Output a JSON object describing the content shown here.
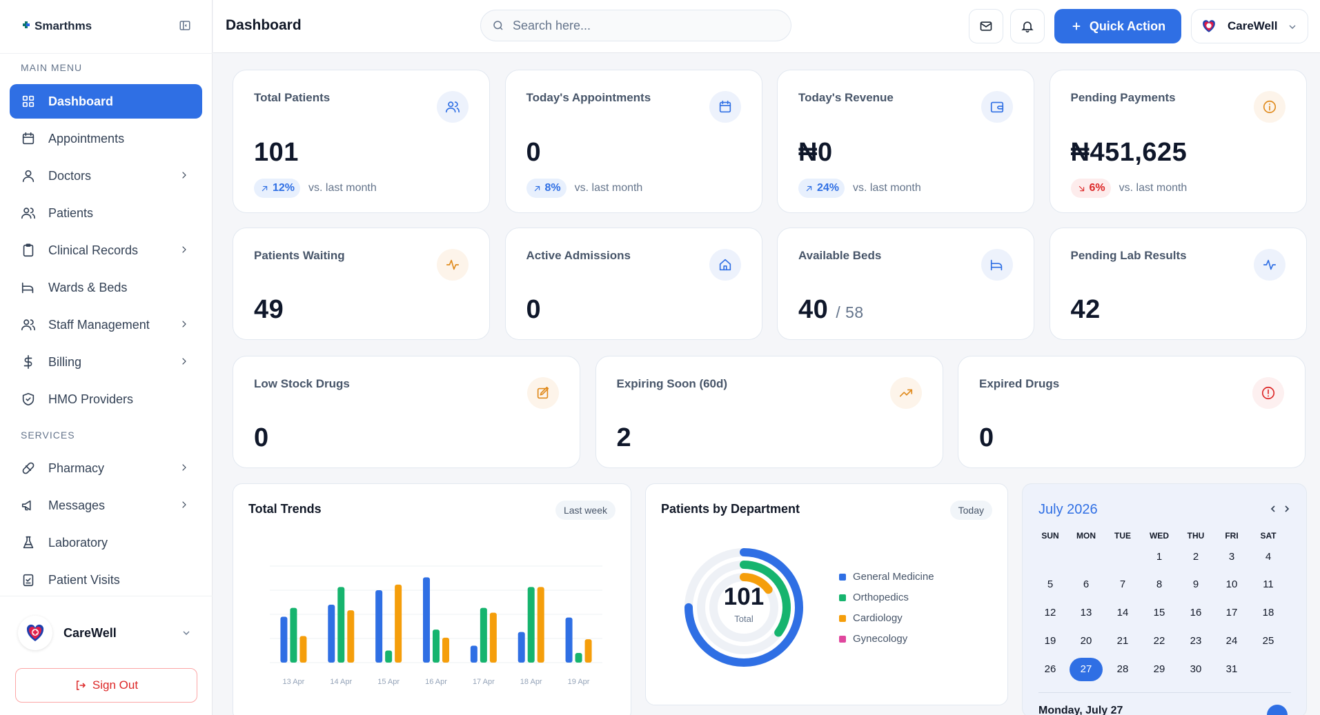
{
  "brand": {
    "name": "Smarthms"
  },
  "sidebar": {
    "main_menu_label": "MAIN MENU",
    "services_label": "SERVICES",
    "items": [
      {
        "label": "Dashboard",
        "icon": "grid-icon",
        "active": true,
        "has_chevron": false
      },
      {
        "label": "Appointments",
        "icon": "calendar-icon",
        "has_chevron": false
      },
      {
        "label": "Doctors",
        "icon": "user-icon",
        "has_chevron": true
      },
      {
        "label": "Patients",
        "icon": "users-icon",
        "has_chevron": false
      },
      {
        "label": "Clinical Records",
        "icon": "clipboard-icon",
        "has_chevron": true
      },
      {
        "label": "Wards & Beds",
        "icon": "bed-icon",
        "has_chevron": false
      },
      {
        "label": "Staff Management",
        "icon": "users-icon",
        "has_chevron": true
      },
      {
        "label": "Billing",
        "icon": "dollar-icon",
        "has_chevron": true
      },
      {
        "label": "HMO Providers",
        "icon": "shield-icon",
        "has_chevron": false
      }
    ],
    "service_items": [
      {
        "label": "Pharmacy",
        "icon": "pill-icon",
        "has_chevron": true
      },
      {
        "label": "Messages",
        "icon": "megaphone-icon",
        "has_chevron": true
      },
      {
        "label": "Laboratory",
        "icon": "flask-icon",
        "has_chevron": false
      },
      {
        "label": "Patient Visits",
        "icon": "clipboard-check-icon",
        "has_chevron": false
      }
    ],
    "user": {
      "name": "CareWell"
    },
    "sign_out": "Sign Out"
  },
  "header": {
    "title": "Dashboard",
    "search_placeholder": "Search here...",
    "quick_action": "Quick Action",
    "org_name": "CareWell"
  },
  "stats_row1": [
    {
      "label": "Total Patients",
      "value": "101",
      "trend": "12%",
      "trend_dir": "up",
      "trend_note": "vs. last month",
      "icon": "users-icon",
      "tone": "blue"
    },
    {
      "label": "Today's Appointments",
      "value": "0",
      "trend": "8%",
      "trend_dir": "up",
      "trend_note": "vs. last month",
      "icon": "calendar-icon",
      "tone": "blue"
    },
    {
      "label": "Today's Revenue",
      "value": "₦0",
      "trend": "24%",
      "trend_dir": "up",
      "trend_note": "vs. last month",
      "icon": "wallet-icon",
      "tone": "blue"
    },
    {
      "label": "Pending Payments",
      "value": "₦451,625",
      "trend": "6%",
      "trend_dir": "down",
      "trend_note": "vs. last month",
      "icon": "info-icon",
      "tone": "orange"
    }
  ],
  "stats_row2": [
    {
      "label": "Patients Waiting",
      "value": "49",
      "sub": "",
      "icon": "activity-icon",
      "tone": "orange"
    },
    {
      "label": "Active Admissions",
      "value": "0",
      "sub": "",
      "icon": "home-icon",
      "tone": "blue"
    },
    {
      "label": "Available Beds",
      "value": "40",
      "sub": "/ 58",
      "icon": "bed-icon",
      "tone": "blue"
    },
    {
      "label": "Pending Lab Results",
      "value": "42",
      "sub": "",
      "icon": "activity-icon",
      "tone": "blue"
    }
  ],
  "stats_row3": [
    {
      "label": "Low Stock Drugs",
      "value": "0",
      "icon": "edit-icon",
      "tone": "orange"
    },
    {
      "label": "Expiring Soon (60d)",
      "value": "2",
      "icon": "trending-up-icon",
      "tone": "orange"
    },
    {
      "label": "Expired Drugs",
      "value": "0",
      "icon": "alert-circle-icon",
      "tone": "red"
    }
  ],
  "trends": {
    "title": "Total Trends",
    "badge": "Last week"
  },
  "departments": {
    "title": "Patients by Department",
    "badge": "Today",
    "total": "101",
    "total_label": "Total",
    "legend": [
      {
        "name": "General Medicine",
        "color": "#2f6fe4"
      },
      {
        "name": "Orthopedics",
        "color": "#16b46e"
      },
      {
        "name": "Cardiology",
        "color": "#f59e0b"
      },
      {
        "name": "Gynecology",
        "color": "#e0479e"
      }
    ]
  },
  "calendar": {
    "month": "July 2026",
    "days_of_week": [
      "SUN",
      "MON",
      "TUE",
      "WED",
      "THU",
      "FRI",
      "SAT"
    ],
    "first_weekday": 3,
    "days": 31,
    "selected": 27,
    "selected_label": "Monday, July 27"
  },
  "chart_data": {
    "type": "bar",
    "categories": [
      "13 Apr",
      "14 Apr",
      "15 Apr",
      "16 Apr",
      "17 Apr",
      "18 Apr",
      "19 Apr"
    ],
    "series": [
      {
        "color": "#2f6fe4",
        "values": [
          57,
          72,
          90,
          106,
          21,
          38,
          56
        ]
      },
      {
        "color": "#16b46e",
        "values": [
          68,
          94,
          15,
          41,
          68,
          94,
          12
        ]
      },
      {
        "color": "#f59e0b",
        "values": [
          33,
          65,
          97,
          31,
          62,
          94,
          29
        ]
      }
    ],
    "ylim": [
      0,
      120
    ],
    "grid": true
  },
  "department_chart": {
    "type": "pie",
    "rings": [
      {
        "color": "#2f6fe4",
        "fraction": 0.75
      },
      {
        "color": "#16b46e",
        "fraction": 0.35
      },
      {
        "color": "#f59e0b",
        "fraction": 0.15
      }
    ]
  }
}
